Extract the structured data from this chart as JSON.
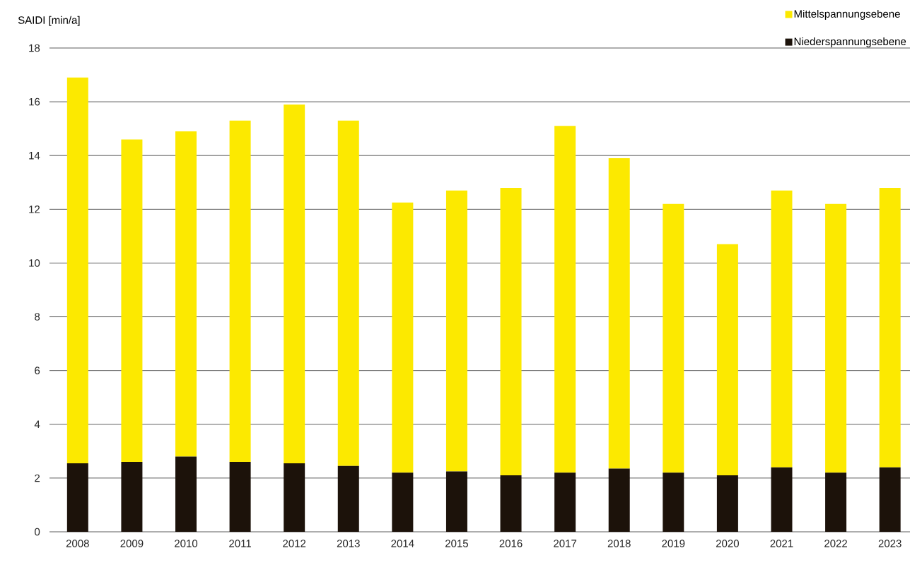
{
  "chart_data": {
    "type": "bar",
    "stacked": true,
    "ylabel": "SAIDI [min/a]",
    "categories": [
      "2008",
      "2009",
      "2010",
      "2011",
      "2012",
      "2013",
      "2014",
      "2015",
      "2016",
      "2017",
      "2018",
      "2019",
      "2020",
      "2021",
      "2022",
      "2023"
    ],
    "series": [
      {
        "name": "Niederspannungsebene",
        "color": "#1c120a",
        "values": [
          2.55,
          2.6,
          2.8,
          2.6,
          2.55,
          2.45,
          2.2,
          2.25,
          2.1,
          2.2,
          2.35,
          2.2,
          2.1,
          2.4,
          2.2,
          2.4
        ]
      },
      {
        "name": "Mittelspannungsebene",
        "color": "#fce900",
        "values": [
          14.35,
          12.0,
          12.1,
          12.7,
          13.35,
          12.85,
          10.05,
          10.45,
          10.7,
          12.9,
          11.55,
          10.0,
          8.6,
          10.3,
          10.0,
          10.4
        ]
      }
    ],
    "ylim": [
      0,
      18
    ],
    "yticks": [
      0,
      2,
      4,
      6,
      8,
      10,
      12,
      14,
      16,
      18
    ],
    "grid": "y",
    "legend": "top right"
  }
}
